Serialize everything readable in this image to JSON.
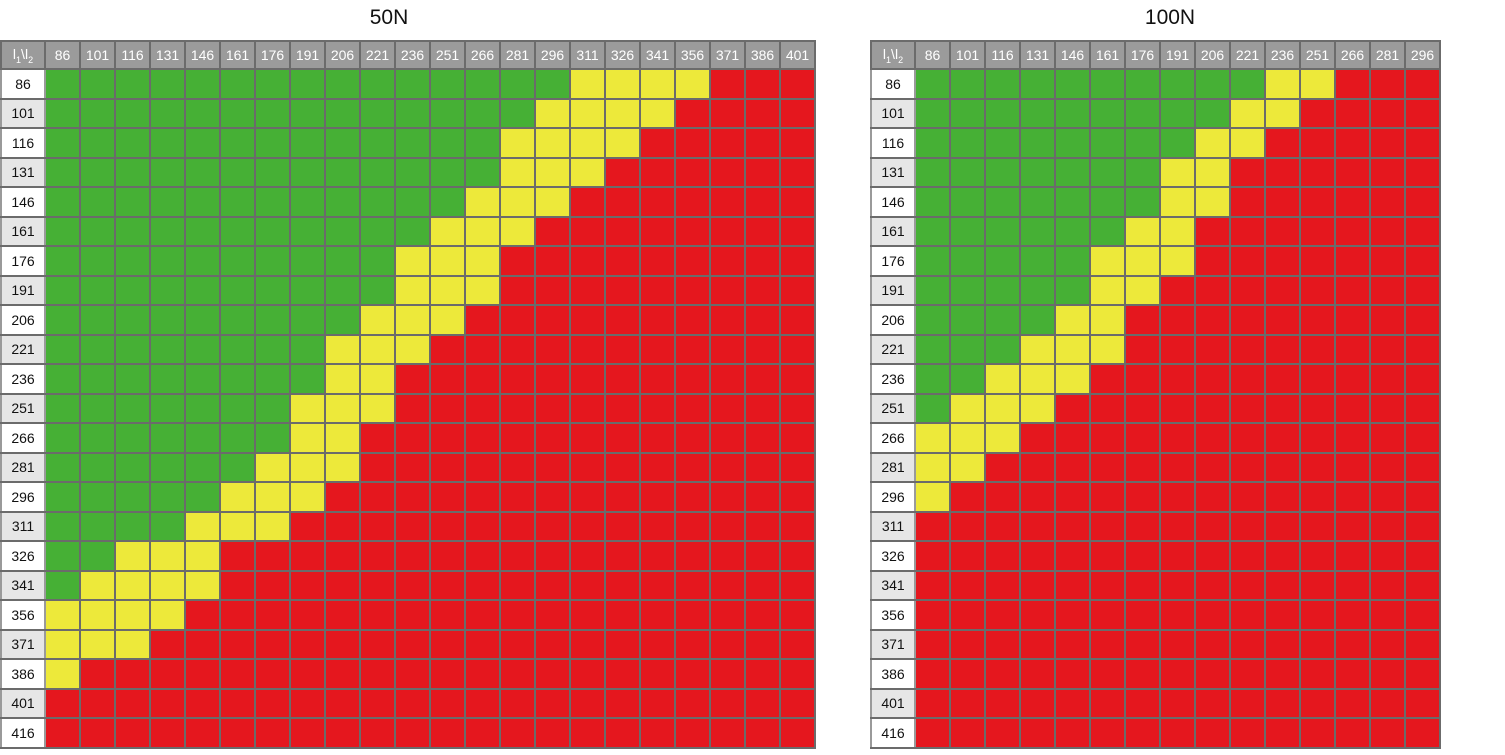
{
  "colors": {
    "green": "#46b035",
    "yellow": "#ede93a",
    "red": "#e5171e",
    "header_bg": "#9b9b9b"
  },
  "legend_note": "cell color encodes category: 2 = green, 1 = yellow, 0 = red",
  "chart_data": [
    {
      "type": "heatmap",
      "title": "50N",
      "corner_label": "l1\\l2",
      "columns": [
        86,
        101,
        116,
        131,
        146,
        161,
        176,
        191,
        206,
        221,
        236,
        251,
        266,
        281,
        296,
        311,
        326,
        341,
        356,
        371,
        386,
        401
      ],
      "rows": [
        86,
        101,
        116,
        131,
        146,
        161,
        176,
        191,
        206,
        221,
        236,
        251,
        266,
        281,
        296,
        311,
        326,
        341,
        356,
        371,
        386,
        401,
        416
      ],
      "green_cols": [
        15,
        14,
        13,
        13,
        12,
        11,
        10,
        10,
        9,
        8,
        8,
        7,
        7,
        6,
        5,
        4,
        2,
        1,
        0,
        0,
        0,
        0,
        0
      ],
      "yellow_cols": [
        4,
        4,
        4,
        3,
        3,
        3,
        3,
        3,
        3,
        3,
        2,
        3,
        2,
        3,
        3,
        3,
        3,
        4,
        4,
        3,
        1,
        0,
        0
      ],
      "values": [
        [
          2,
          2,
          2,
          2,
          2,
          2,
          2,
          2,
          2,
          2,
          2,
          2,
          2,
          2,
          2,
          1,
          1,
          1,
          1,
          0,
          0,
          0
        ],
        [
          2,
          2,
          2,
          2,
          2,
          2,
          2,
          2,
          2,
          2,
          2,
          2,
          2,
          2,
          1,
          1,
          1,
          1,
          0,
          0,
          0,
          0
        ],
        [
          2,
          2,
          2,
          2,
          2,
          2,
          2,
          2,
          2,
          2,
          2,
          2,
          2,
          1,
          1,
          1,
          1,
          0,
          0,
          0,
          0,
          0
        ],
        [
          2,
          2,
          2,
          2,
          2,
          2,
          2,
          2,
          2,
          2,
          2,
          2,
          2,
          1,
          1,
          1,
          0,
          0,
          0,
          0,
          0,
          0
        ],
        [
          2,
          2,
          2,
          2,
          2,
          2,
          2,
          2,
          2,
          2,
          2,
          2,
          1,
          1,
          1,
          0,
          0,
          0,
          0,
          0,
          0,
          0
        ],
        [
          2,
          2,
          2,
          2,
          2,
          2,
          2,
          2,
          2,
          2,
          2,
          1,
          1,
          1,
          0,
          0,
          0,
          0,
          0,
          0,
          0,
          0
        ],
        [
          2,
          2,
          2,
          2,
          2,
          2,
          2,
          2,
          2,
          2,
          1,
          1,
          1,
          0,
          0,
          0,
          0,
          0,
          0,
          0,
          0,
          0
        ],
        [
          2,
          2,
          2,
          2,
          2,
          2,
          2,
          2,
          2,
          2,
          1,
          1,
          1,
          0,
          0,
          0,
          0,
          0,
          0,
          0,
          0,
          0
        ],
        [
          2,
          2,
          2,
          2,
          2,
          2,
          2,
          2,
          2,
          1,
          1,
          1,
          0,
          0,
          0,
          0,
          0,
          0,
          0,
          0,
          0,
          0
        ],
        [
          2,
          2,
          2,
          2,
          2,
          2,
          2,
          2,
          1,
          1,
          1,
          0,
          0,
          0,
          0,
          0,
          0,
          0,
          0,
          0,
          0,
          0
        ],
        [
          2,
          2,
          2,
          2,
          2,
          2,
          2,
          2,
          1,
          1,
          0,
          0,
          0,
          0,
          0,
          0,
          0,
          0,
          0,
          0,
          0,
          0
        ],
        [
          2,
          2,
          2,
          2,
          2,
          2,
          2,
          1,
          1,
          1,
          0,
          0,
          0,
          0,
          0,
          0,
          0,
          0,
          0,
          0,
          0,
          0
        ],
        [
          2,
          2,
          2,
          2,
          2,
          2,
          2,
          1,
          1,
          0,
          0,
          0,
          0,
          0,
          0,
          0,
          0,
          0,
          0,
          0,
          0,
          0
        ],
        [
          2,
          2,
          2,
          2,
          2,
          2,
          1,
          1,
          1,
          0,
          0,
          0,
          0,
          0,
          0,
          0,
          0,
          0,
          0,
          0,
          0,
          0
        ],
        [
          2,
          2,
          2,
          2,
          2,
          1,
          1,
          1,
          0,
          0,
          0,
          0,
          0,
          0,
          0,
          0,
          0,
          0,
          0,
          0,
          0,
          0
        ],
        [
          2,
          2,
          2,
          2,
          1,
          1,
          1,
          0,
          0,
          0,
          0,
          0,
          0,
          0,
          0,
          0,
          0,
          0,
          0,
          0,
          0,
          0
        ],
        [
          2,
          2,
          1,
          1,
          1,
          0,
          0,
          0,
          0,
          0,
          0,
          0,
          0,
          0,
          0,
          0,
          0,
          0,
          0,
          0,
          0,
          0
        ],
        [
          2,
          1,
          1,
          1,
          1,
          0,
          0,
          0,
          0,
          0,
          0,
          0,
          0,
          0,
          0,
          0,
          0,
          0,
          0,
          0,
          0,
          0
        ],
        [
          1,
          1,
          1,
          1,
          0,
          0,
          0,
          0,
          0,
          0,
          0,
          0,
          0,
          0,
          0,
          0,
          0,
          0,
          0,
          0,
          0,
          0
        ],
        [
          1,
          1,
          1,
          0,
          0,
          0,
          0,
          0,
          0,
          0,
          0,
          0,
          0,
          0,
          0,
          0,
          0,
          0,
          0,
          0,
          0,
          0
        ],
        [
          1,
          0,
          0,
          0,
          0,
          0,
          0,
          0,
          0,
          0,
          0,
          0,
          0,
          0,
          0,
          0,
          0,
          0,
          0,
          0,
          0,
          0
        ],
        [
          0,
          0,
          0,
          0,
          0,
          0,
          0,
          0,
          0,
          0,
          0,
          0,
          0,
          0,
          0,
          0,
          0,
          0,
          0,
          0,
          0,
          0
        ],
        [
          0,
          0,
          0,
          0,
          0,
          0,
          0,
          0,
          0,
          0,
          0,
          0,
          0,
          0,
          0,
          0,
          0,
          0,
          0,
          0,
          0,
          0
        ]
      ]
    },
    {
      "type": "heatmap",
      "title": "100N",
      "corner_label": "l1\\l2",
      "columns": [
        86,
        101,
        116,
        131,
        146,
        161,
        176,
        191,
        206,
        221,
        236,
        251,
        266,
        281,
        296
      ],
      "rows": [
        86,
        101,
        116,
        131,
        146,
        161,
        176,
        191,
        206,
        221,
        236,
        251,
        266,
        281,
        296,
        311,
        326,
        341,
        356,
        371,
        386,
        401,
        416
      ],
      "green_cols": [
        10,
        9,
        8,
        7,
        7,
        6,
        5,
        5,
        4,
        3,
        2,
        1,
        0,
        0,
        0,
        0,
        0,
        0,
        0,
        0,
        0,
        0,
        0
      ],
      "yellow_cols": [
        2,
        2,
        2,
        2,
        2,
        2,
        3,
        2,
        2,
        3,
        3,
        3,
        3,
        2,
        1,
        0,
        0,
        0,
        0,
        0,
        0,
        0,
        0
      ],
      "values": [
        [
          2,
          2,
          2,
          2,
          2,
          2,
          2,
          2,
          2,
          2,
          1,
          1,
          0,
          0,
          0
        ],
        [
          2,
          2,
          2,
          2,
          2,
          2,
          2,
          2,
          2,
          1,
          1,
          0,
          0,
          0,
          0
        ],
        [
          2,
          2,
          2,
          2,
          2,
          2,
          2,
          2,
          1,
          1,
          0,
          0,
          0,
          0,
          0
        ],
        [
          2,
          2,
          2,
          2,
          2,
          2,
          2,
          1,
          1,
          0,
          0,
          0,
          0,
          0,
          0
        ],
        [
          2,
          2,
          2,
          2,
          2,
          2,
          2,
          1,
          1,
          0,
          0,
          0,
          0,
          0,
          0
        ],
        [
          2,
          2,
          2,
          2,
          2,
          2,
          1,
          1,
          0,
          0,
          0,
          0,
          0,
          0,
          0
        ],
        [
          2,
          2,
          2,
          2,
          2,
          1,
          1,
          1,
          0,
          0,
          0,
          0,
          0,
          0,
          0
        ],
        [
          2,
          2,
          2,
          2,
          2,
          1,
          1,
          0,
          0,
          0,
          0,
          0,
          0,
          0,
          0
        ],
        [
          2,
          2,
          2,
          2,
          1,
          1,
          0,
          0,
          0,
          0,
          0,
          0,
          0,
          0,
          0
        ],
        [
          2,
          2,
          2,
          1,
          1,
          1,
          0,
          0,
          0,
          0,
          0,
          0,
          0,
          0,
          0
        ],
        [
          2,
          2,
          1,
          1,
          1,
          0,
          0,
          0,
          0,
          0,
          0,
          0,
          0,
          0,
          0
        ],
        [
          2,
          1,
          1,
          1,
          0,
          0,
          0,
          0,
          0,
          0,
          0,
          0,
          0,
          0,
          0
        ],
        [
          1,
          1,
          1,
          0,
          0,
          0,
          0,
          0,
          0,
          0,
          0,
          0,
          0,
          0,
          0
        ],
        [
          1,
          1,
          0,
          0,
          0,
          0,
          0,
          0,
          0,
          0,
          0,
          0,
          0,
          0,
          0
        ],
        [
          1,
          0,
          0,
          0,
          0,
          0,
          0,
          0,
          0,
          0,
          0,
          0,
          0,
          0,
          0
        ],
        [
          0,
          0,
          0,
          0,
          0,
          0,
          0,
          0,
          0,
          0,
          0,
          0,
          0,
          0,
          0
        ],
        [
          0,
          0,
          0,
          0,
          0,
          0,
          0,
          0,
          0,
          0,
          0,
          0,
          0,
          0,
          0
        ],
        [
          0,
          0,
          0,
          0,
          0,
          0,
          0,
          0,
          0,
          0,
          0,
          0,
          0,
          0,
          0
        ],
        [
          0,
          0,
          0,
          0,
          0,
          0,
          0,
          0,
          0,
          0,
          0,
          0,
          0,
          0,
          0
        ],
        [
          0,
          0,
          0,
          0,
          0,
          0,
          0,
          0,
          0,
          0,
          0,
          0,
          0,
          0,
          0
        ],
        [
          0,
          0,
          0,
          0,
          0,
          0,
          0,
          0,
          0,
          0,
          0,
          0,
          0,
          0,
          0
        ],
        [
          0,
          0,
          0,
          0,
          0,
          0,
          0,
          0,
          0,
          0,
          0,
          0,
          0,
          0,
          0
        ],
        [
          0,
          0,
          0,
          0,
          0,
          0,
          0,
          0,
          0,
          0,
          0,
          0,
          0,
          0,
          0
        ]
      ]
    }
  ]
}
